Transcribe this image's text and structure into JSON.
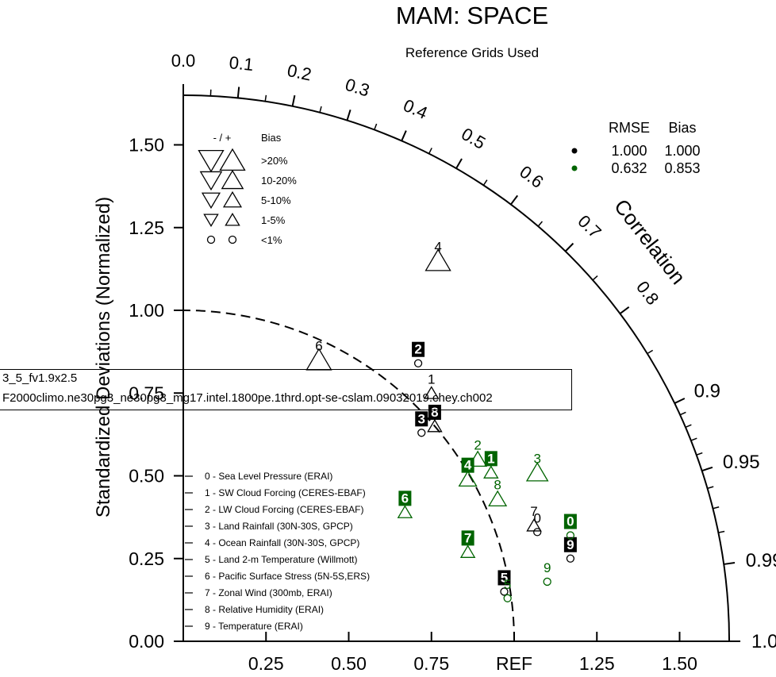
{
  "chart_data": {
    "type": "taylor",
    "title": "MAM: SPACE",
    "subtitle": "Reference Grids Used",
    "ylabel": "Standardized Deviations (Normalized)",
    "correlation_label": "Correlation",
    "ref_label": "REF",
    "std_range": [
      0,
      1.65
    ],
    "std_ticks": [
      "0.00",
      "0.25",
      "0.50",
      "0.75",
      "1.00",
      "1.25",
      "1.50"
    ],
    "x_ticks": [
      "0.25",
      "0.50",
      "0.75",
      "REF",
      "1.25",
      "1.50"
    ],
    "corr_ticks": [
      "0.0",
      "0.1",
      "0.2",
      "0.3",
      "0.4",
      "0.5",
      "0.6",
      "0.7",
      "0.8",
      "0.9",
      "0.95",
      "0.99",
      "1.0"
    ],
    "bias_legend": {
      "header_sign": "- / +",
      "header_bias": "Bias",
      "rows": [
        ">20%",
        "10-20%",
        "5-10%",
        "1-5%",
        "<1%"
      ]
    },
    "rmse_legend": {
      "header_rmse": "RMSE",
      "header_bias": "Bias",
      "rows": [
        {
          "rmse": "1.000",
          "bias": "1.000",
          "color": "#000000"
        },
        {
          "rmse": "0.632",
          "bias": "0.853",
          "color": "#006400"
        }
      ]
    },
    "variables": [
      "0 - Sea Level Pressure (ERAI)",
      "1 - SW Cloud Forcing (CERES-EBAF)",
      "2 - LW Cloud Forcing (CERES-EBAF)",
      "3 - Land Rainfall (30N-30S, GPCP)",
      "4 - Ocean Rainfall (30N-30S, GPCP)",
      "5 - Land 2-m Temperature (Willmott)",
      "6 - Pacific Surface Stress (5N-5S,ERS)",
      "7 - Zonal Wind (300mb, ERAI)",
      "8 - Relative Humidity (ERAI)",
      "9 - Temperature (ERAI)"
    ],
    "series": [
      {
        "name": "3_5_fv1.9x2.5",
        "color": "#000000",
        "points": [
          {
            "label": "0",
            "x": 1.07,
            "y": 0.33,
            "marker": "circle",
            "size": 1,
            "boxed": false
          },
          {
            "label": "1",
            "x": 0.75,
            "y": 0.75,
            "marker": "up",
            "size": 2,
            "boxed": false
          },
          {
            "label": "2",
            "x": 0.71,
            "y": 0.84,
            "marker": "circle",
            "size": 1,
            "boxed": true
          },
          {
            "label": "3",
            "x": 0.72,
            "y": 0.63,
            "marker": "circle",
            "size": 1,
            "boxed": true
          },
          {
            "label": "4",
            "x": 0.77,
            "y": 1.15,
            "marker": "up",
            "size": 5,
            "boxed": false
          },
          {
            "label": "5",
            "x": 0.97,
            "y": 0.15,
            "marker": "circle",
            "size": 1,
            "boxed": true
          },
          {
            "label": "6",
            "x": 0.41,
            "y": 0.85,
            "marker": "up",
            "size": 5,
            "boxed": false
          },
          {
            "label": "7",
            "x": 1.06,
            "y": 0.35,
            "marker": "up",
            "size": 2,
            "boxed": false
          },
          {
            "label": "8",
            "x": 0.76,
            "y": 0.65,
            "marker": "up",
            "size": 2,
            "boxed": true
          },
          {
            "label": "9",
            "x": 1.17,
            "y": 0.25,
            "marker": "circle",
            "size": 1,
            "boxed": true
          }
        ]
      },
      {
        "name": "F2000climo.ne30pg3_ne30pg3_mg17.intel.1800pe.1thrd.opt-se-cslam.09032019.chey.ch002",
        "color": "#006400",
        "points": [
          {
            "label": "0",
            "x": 1.17,
            "y": 0.32,
            "marker": "circle",
            "size": 1,
            "boxed": true
          },
          {
            "label": "1",
            "x": 0.93,
            "y": 0.51,
            "marker": "up",
            "size": 2,
            "boxed": true
          },
          {
            "label": "2",
            "x": 0.89,
            "y": 0.55,
            "marker": "up",
            "size": 3,
            "boxed": false
          },
          {
            "label": "3",
            "x": 1.07,
            "y": 0.51,
            "marker": "up",
            "size": 4,
            "boxed": false
          },
          {
            "label": "4",
            "x": 0.86,
            "y": 0.49,
            "marker": "up",
            "size": 3,
            "boxed": true
          },
          {
            "label": "5",
            "x": 0.98,
            "y": 0.13,
            "marker": "circle",
            "size": 1,
            "boxed": false
          },
          {
            "label": "6",
            "x": 0.67,
            "y": 0.39,
            "marker": "up",
            "size": 2,
            "boxed": true
          },
          {
            "label": "7",
            "x": 0.86,
            "y": 0.27,
            "marker": "up",
            "size": 2,
            "boxed": true
          },
          {
            "label": "8",
            "x": 0.95,
            "y": 0.43,
            "marker": "up",
            "size": 3,
            "boxed": false
          },
          {
            "label": "9",
            "x": 1.1,
            "y": 0.18,
            "marker": "circle",
            "size": 1,
            "boxed": false
          }
        ]
      }
    ]
  }
}
